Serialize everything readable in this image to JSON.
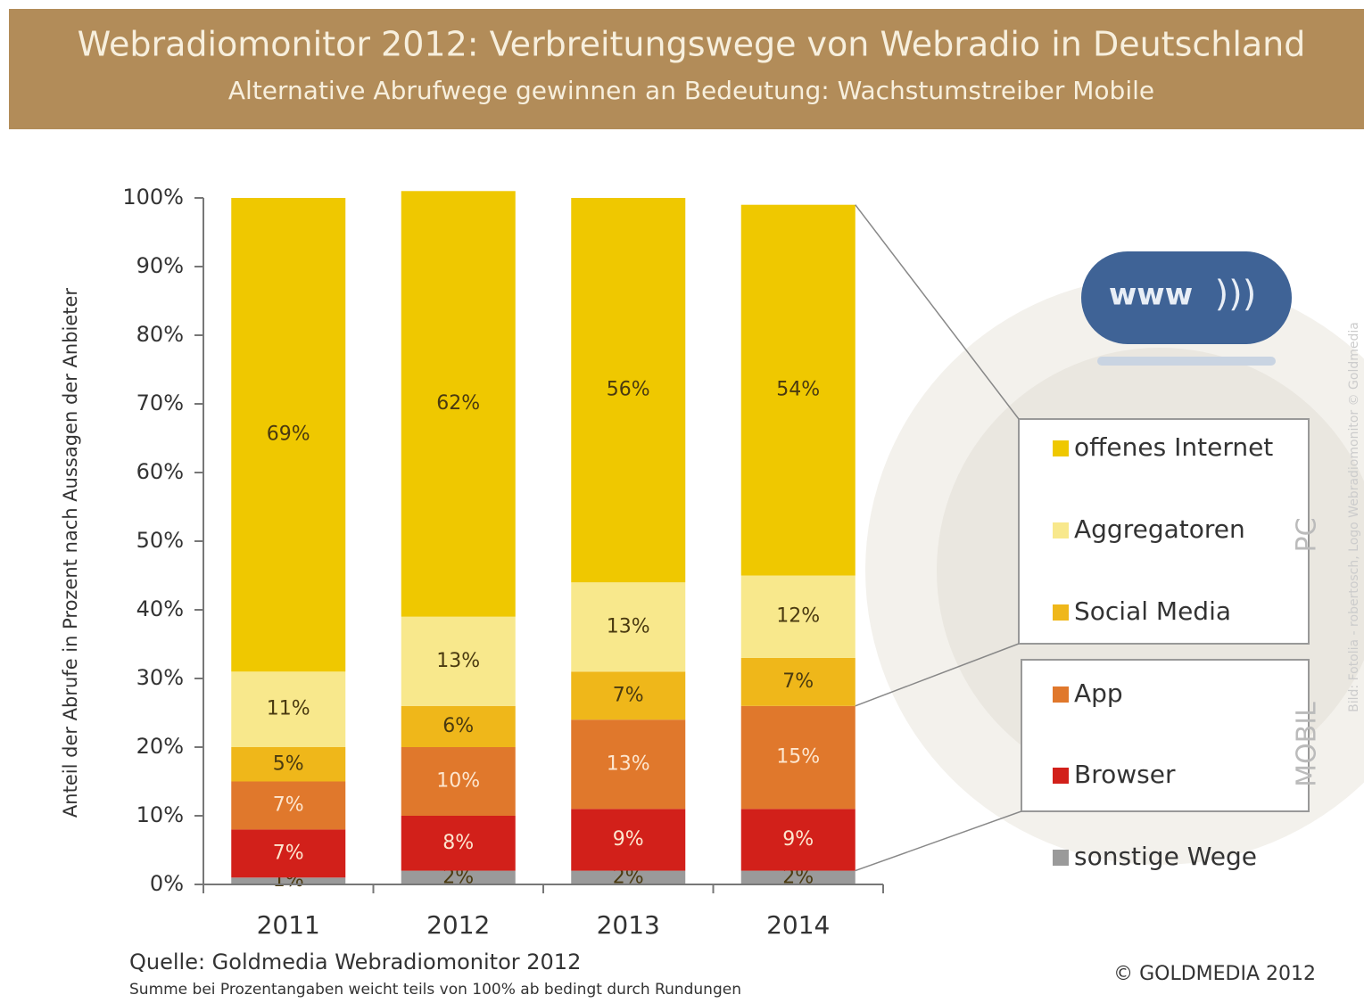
{
  "chart_data": {
    "type": "bar",
    "stacked": true,
    "title": "Webradiomonitor 2012: Verbreitungswege von Webradio in Deutschland",
    "subtitle": "Alternative Abrufwege gewinnen an Bedeutung: Wachstumstreiber Mobile",
    "y_label": "Anteil der Abrufe in Prozent nach Aussagen der Anbieter",
    "categories": [
      "2011",
      "2012",
      "2013",
      "2014"
    ],
    "series": [
      {
        "name": "offenes Internet",
        "color": "#efc800",
        "values": [
          69,
          62,
          56,
          54
        ],
        "value_labels": [
          "69%",
          "62%",
          "56%",
          "54%"
        ]
      },
      {
        "name": "Aggregatoren",
        "color": "#f8e88c",
        "values": [
          11,
          13,
          13,
          12
        ],
        "value_labels": [
          "11%",
          "13%",
          "13%",
          "12%"
        ]
      },
      {
        "name": "Social Media",
        "color": "#efb71a",
        "values": [
          5,
          6,
          7,
          7
        ],
        "value_labels": [
          "5%",
          "6%",
          "7%",
          "7%"
        ]
      },
      {
        "name": "App",
        "color": "#e0782c",
        "values": [
          7,
          10,
          13,
          15
        ],
        "value_labels": [
          "7%",
          "10%",
          "13%",
          "15%"
        ]
      },
      {
        "name": "Browser",
        "color": "#d2201a",
        "values": [
          7,
          8,
          9,
          9
        ],
        "value_labels": [
          "7%",
          "8%",
          "9%",
          "9%"
        ]
      },
      {
        "name": "sonstige Wege",
        "color": "#9a9a9a",
        "values": [
          1,
          2,
          2,
          2
        ],
        "value_labels": [
          "1%",
          "2%",
          "2%",
          "2%"
        ]
      }
    ],
    "ylim": [
      0,
      100
    ],
    "yticks": [
      {
        "value": 0,
        "label": "0%"
      },
      {
        "value": 10,
        "label": "10%"
      },
      {
        "value": 20,
        "label": "20%"
      },
      {
        "value": 30,
        "label": "30%"
      },
      {
        "value": 40,
        "label": "40%"
      },
      {
        "value": 50,
        "label": "50%"
      },
      {
        "value": 60,
        "label": "60%"
      },
      {
        "value": 70,
        "label": "70%"
      },
      {
        "value": 80,
        "label": "80%"
      },
      {
        "value": 90,
        "label": "90%"
      },
      {
        "value": 100,
        "label": "100%"
      }
    ],
    "legend_group_labels": [
      "PC",
      "MOBIL"
    ],
    "logo_text": "www",
    "source": "Quelle: Goldmedia Webradiomonitor 2012",
    "note": "Summe bei Prozentangaben weicht teils von 100% ab bedingt durch Rundungen",
    "copyright": "© GOLDMEDIA 2012",
    "image_credit": "Bild: Fotolia - robertosch, Logo Webradiomonitor © Goldmedia"
  }
}
